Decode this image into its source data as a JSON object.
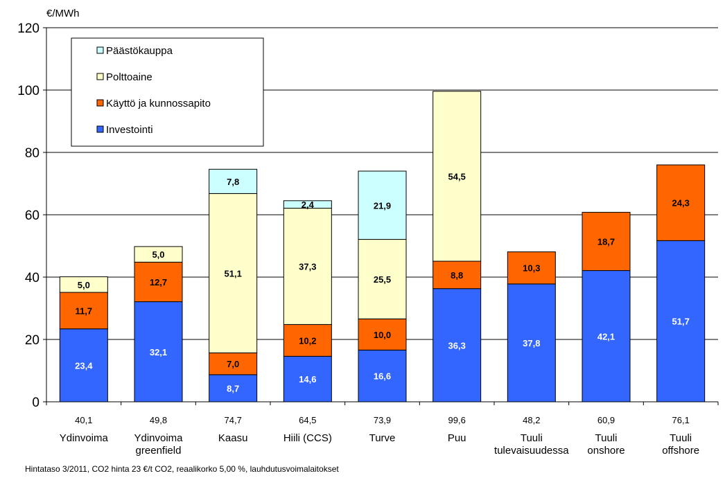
{
  "chart_data": {
    "type": "bar",
    "stacked": true,
    "ylabel": "€/MWh",
    "ylim": [
      0,
      120
    ],
    "yticks": [
      "0",
      "20",
      "40",
      "60",
      "80",
      "100",
      "120"
    ],
    "grid": true,
    "legend_position": "top-left",
    "categories": [
      [
        "Ydinvoima"
      ],
      [
        "Ydinvoima",
        "greenfield"
      ],
      [
        "Kaasu"
      ],
      [
        "Hiili (CCS)"
      ],
      [
        "Turve"
      ],
      [
        "Puu"
      ],
      [
        "Tuuli",
        "tulevaisuudessa"
      ],
      [
        "Tuuli",
        "onshore"
      ],
      [
        "Tuuli",
        "offshore"
      ]
    ],
    "totals": [
      "40,1",
      "49,8",
      "74,7",
      "64,5",
      "73,9",
      "99,6",
      "48,2",
      "60,9",
      "76,1"
    ],
    "series": [
      {
        "name": "Investointi",
        "color": "#3366FF",
        "label_color": "#FFFFFF",
        "values": [
          23.4,
          32.1,
          8.7,
          14.6,
          16.6,
          36.3,
          37.8,
          42.1,
          51.7
        ],
        "labels": [
          "23,4",
          "32,1",
          "8,7",
          "14,6",
          "16,6",
          "36,3",
          "37,8",
          "42,1",
          "51,7"
        ]
      },
      {
        "name": "Käyttö ja kunnossapito",
        "color": "#FF6600",
        "label_color": "#000000",
        "values": [
          11.7,
          12.7,
          7.0,
          10.2,
          10.0,
          8.8,
          10.3,
          18.7,
          24.3
        ],
        "labels": [
          "11,7",
          "12,7",
          "7,0",
          "10,2",
          "10,0",
          "8,8",
          "10,3",
          "18,7",
          "24,3"
        ]
      },
      {
        "name": "Polttoaine",
        "color": "#FFFFCC",
        "label_color": "#000000",
        "values": [
          5.0,
          5.0,
          51.1,
          37.3,
          25.5,
          54.5,
          null,
          null,
          null
        ],
        "labels": [
          "5,0",
          "5,0",
          "51,1",
          "37,3",
          "25,5",
          "54,5",
          "",
          "",
          ""
        ]
      },
      {
        "name": "Päästökauppa",
        "color": "#CCFFFF",
        "label_color": "#000000",
        "values": [
          null,
          null,
          7.8,
          2.4,
          21.9,
          null,
          null,
          null,
          null
        ],
        "labels": [
          "",
          "",
          "7,8",
          "2,4",
          "21,9",
          "",
          "",
          "",
          ""
        ]
      }
    ],
    "legend_order": [
      "Päästökauppa",
      "Polttoaine",
      "Käyttö ja kunnossapito",
      "Investointi"
    ],
    "footnote": "Hintataso 3/2011, CO2 hinta 23 €/t CO2, reaalikorko 5,00 %, lauhdutusvoimalaitokset"
  }
}
